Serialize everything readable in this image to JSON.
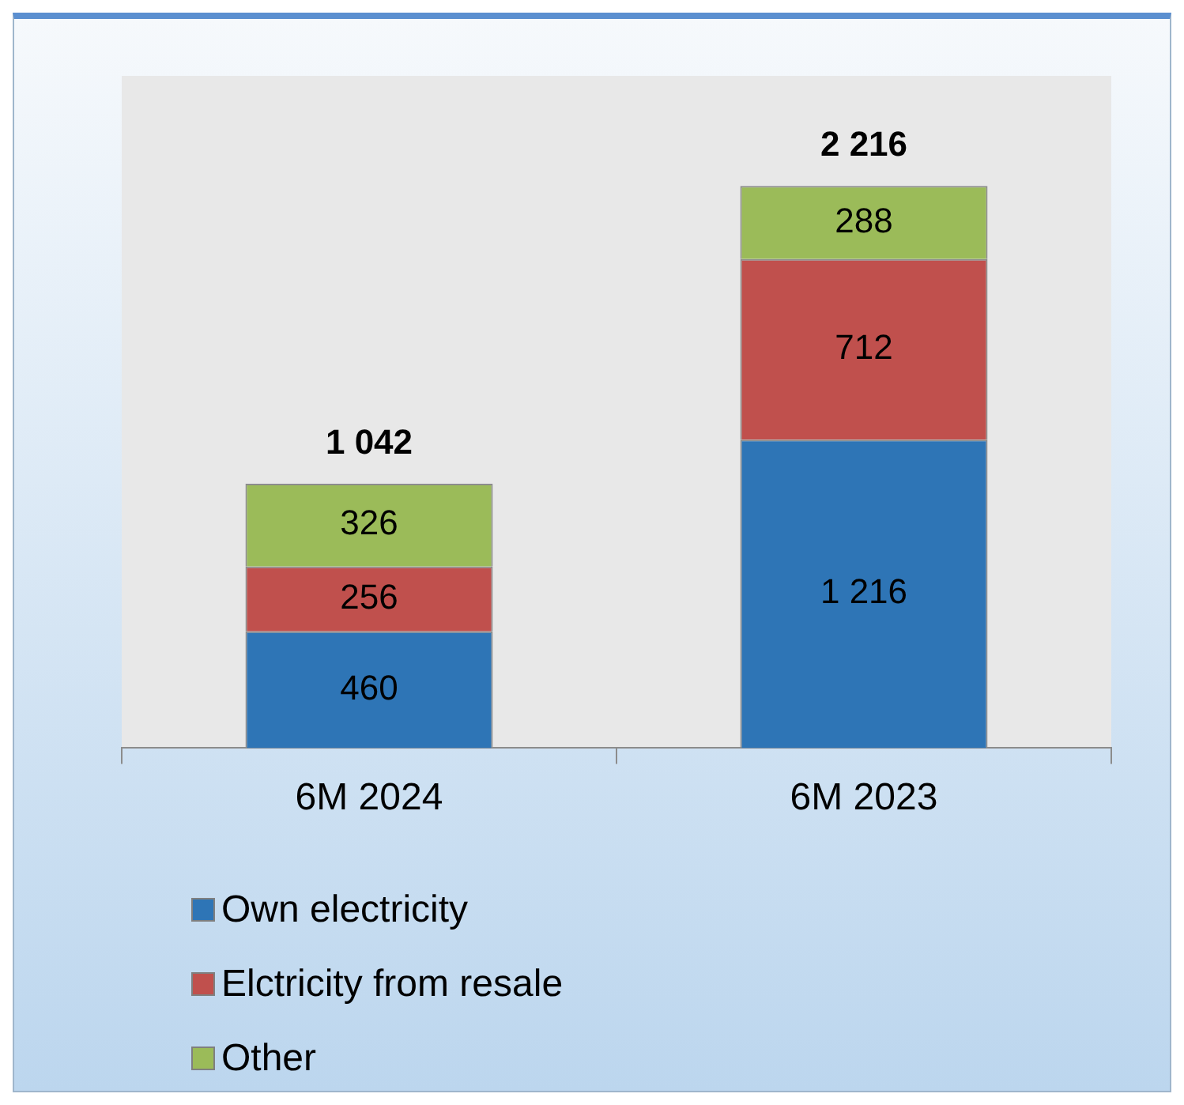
{
  "chart_data": {
    "type": "bar",
    "stacked": true,
    "categories": [
      "6M 2024",
      "6M 2023"
    ],
    "series": [
      {
        "name": "Own electricity",
        "color": "#2e75b6",
        "values": [
          460,
          1216
        ],
        "value_labels": [
          "460",
          "1 216"
        ]
      },
      {
        "name": "Elctricity from resale",
        "color": "#c0504d",
        "values": [
          256,
          712
        ],
        "value_labels": [
          "256",
          "712"
        ]
      },
      {
        "name": "Other",
        "color": "#9bbb59",
        "values": [
          326,
          288
        ],
        "value_labels": [
          "326",
          "288"
        ]
      }
    ],
    "totals": [
      "1 042",
      "2 216"
    ],
    "ylim": [
      0,
      2650
    ],
    "tick_labels": "x",
    "grid": false,
    "legend": "bottom left"
  }
}
